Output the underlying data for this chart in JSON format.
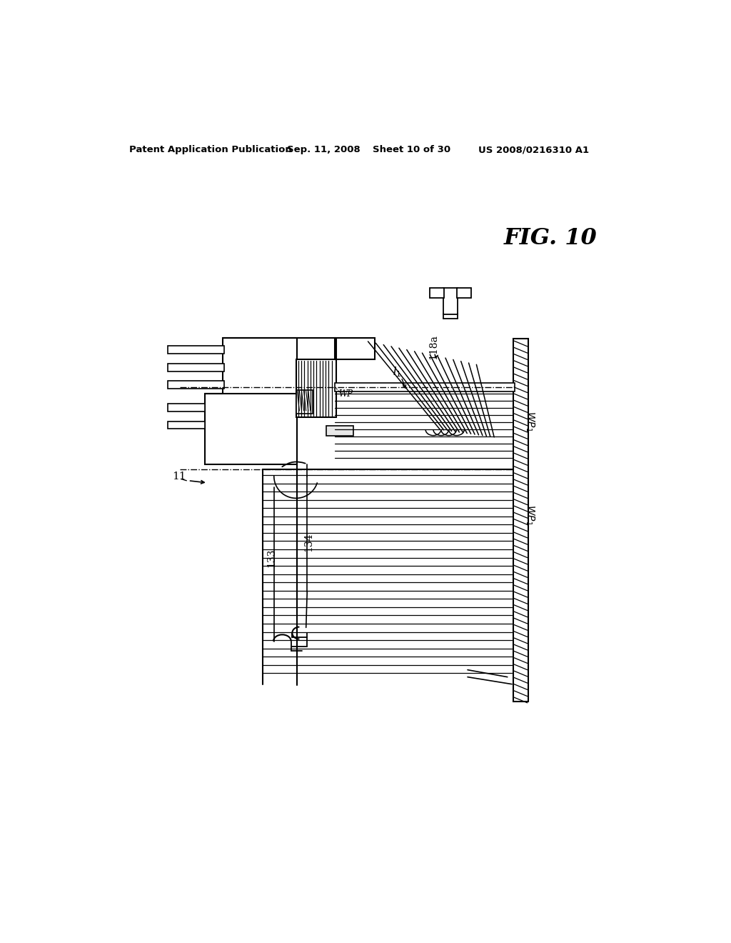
{
  "title": "Patent Application Publication",
  "date": "Sep. 11, 2008",
  "sheet": "Sheet 10 of 30",
  "patent_num": "US 2008/0216310 A1",
  "fig_label": "FIG. 10",
  "background": "#ffffff",
  "line_color": "#000000"
}
